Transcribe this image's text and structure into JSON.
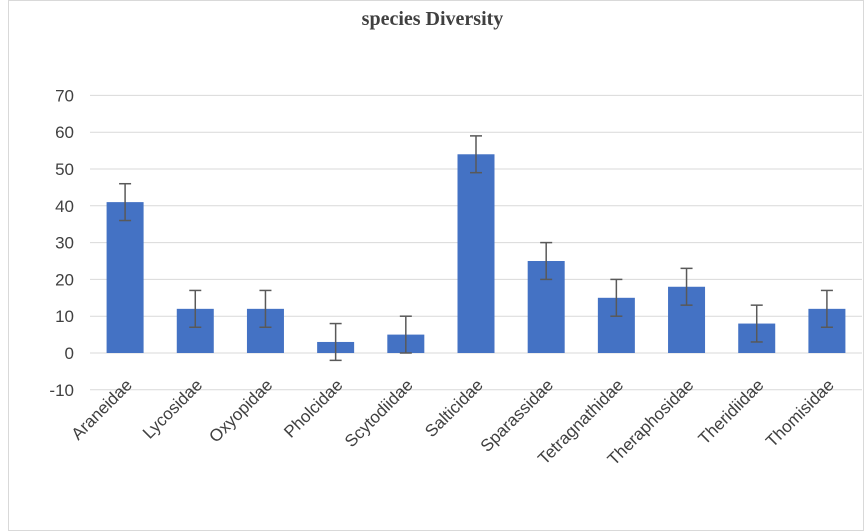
{
  "chart_data": {
    "type": "bar",
    "title": "species Diversity",
    "xlabel": "",
    "ylabel": "",
    "ylim": [
      -10,
      70
    ],
    "yticks": [
      -10,
      0,
      10,
      20,
      30,
      40,
      50,
      60,
      70
    ],
    "grid": true,
    "error_bar": 5,
    "bar_color": "#4472C4",
    "categories": [
      "Araneidae",
      "Lycosidae",
      "Oxyopidae",
      "Pholcidae",
      "Scytodiidae",
      "Salticidae",
      "Sparassidae",
      "Tetragnathidae",
      "Theraphosidae",
      "Theridiidae",
      "Thomisidae"
    ],
    "values": [
      41,
      12,
      12,
      3,
      5,
      54,
      25,
      15,
      18,
      8,
      12
    ]
  }
}
